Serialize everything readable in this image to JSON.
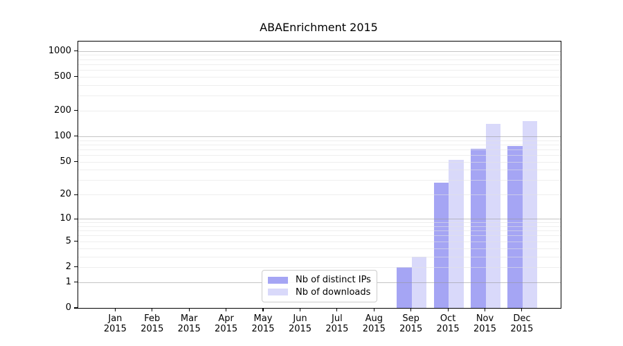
{
  "chart_data": {
    "type": "bar",
    "title": "ABAEnrichment 2015",
    "categories": [
      "Jan",
      "Feb",
      "Mar",
      "Apr",
      "May",
      "Jun",
      "Jul",
      "Aug",
      "Sep",
      "Oct",
      "Nov",
      "Dec"
    ],
    "category_year": "2015",
    "series": [
      {
        "name": "Nb of distinct IPs",
        "color": "#a5a5f4",
        "values": [
          0,
          0,
          0,
          0,
          0,
          0,
          0,
          0,
          2,
          28,
          71,
          77
        ]
      },
      {
        "name": "Nb of downloads",
        "color": "#d9d9fa",
        "values": [
          0,
          0,
          0,
          0,
          0,
          0,
          0,
          0,
          3,
          53,
          141,
          150
        ]
      }
    ],
    "yscale": "log10(value+1)",
    "y_tick_values": [
      0,
      1,
      2,
      5,
      10,
      20,
      50,
      100,
      200,
      500,
      1000
    ],
    "y_major_gridlines": [
      1,
      10,
      100,
      1000
    ],
    "y_minor_gridline_pattern": "2-9 per decade",
    "ylim": [
      0,
      1300
    ],
    "grid": true,
    "legend_position": "lower center",
    "xlabel": "",
    "ylabel": ""
  }
}
